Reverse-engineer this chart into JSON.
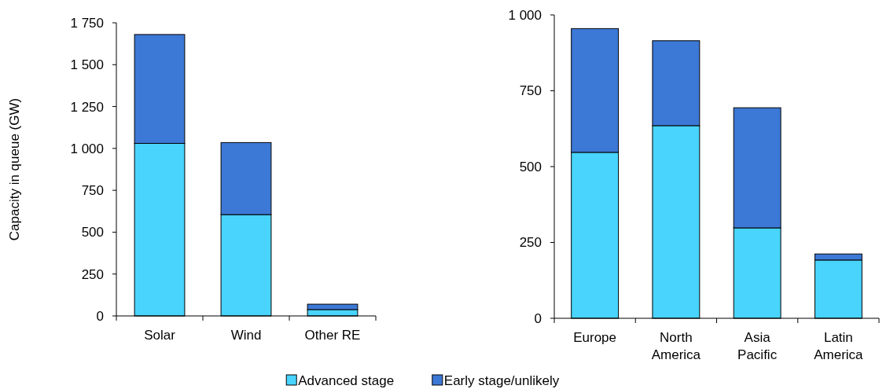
{
  "chart_data": [
    {
      "type": "bar",
      "stacked": true,
      "ylabel": "Capacity in queue (GW)",
      "categories": [
        "Solar",
        "Wind",
        "Other RE"
      ],
      "legend": "bottom",
      "series": [
        {
          "name": "Advanced stage",
          "color": "#48d4fc",
          "values": [
            1030,
            605,
            38
          ]
        },
        {
          "name": "Early stage/unlikely",
          "color": "#3c78d6",
          "values": [
            650,
            430,
            32
          ]
        }
      ],
      "ylim": [
        0,
        1750
      ],
      "yticks": [
        0,
        250,
        500,
        750,
        {
          "value": 1000,
          "label": "1 000"
        },
        {
          "value": 1250,
          "label": "1 250"
        },
        {
          "value": 1500,
          "label": "1 500"
        },
        {
          "value": 1750,
          "label": "1 750"
        }
      ]
    },
    {
      "type": "bar",
      "stacked": true,
      "categories": [
        "Europe",
        "North America",
        "Asia Pacific",
        "Latin America"
      ],
      "series": [
        {
          "color": "#48d4fc",
          "values": [
            547,
            635,
            298,
            192
          ]
        },
        {
          "color": "#3c78d6",
          "values": [
            408,
            280,
            396,
            20
          ]
        }
      ],
      "ylim": [
        0,
        1000
      ],
      "yticks": [
        0,
        250,
        500,
        750,
        {
          "value": 1000,
          "label": "1 000"
        }
      ]
    }
  ]
}
